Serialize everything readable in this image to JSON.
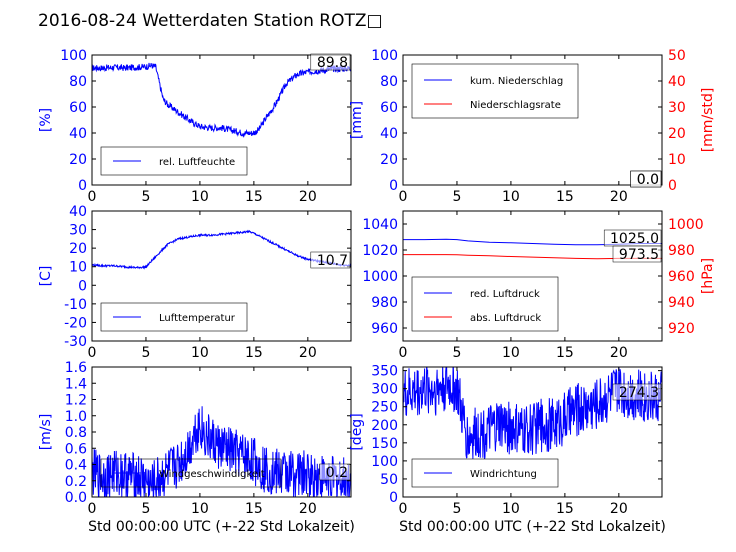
{
  "figure_title": "2016-08-24 Wetterdaten Station ROTZ□",
  "chart_data": [
    {
      "type": "line",
      "panel": "humidity",
      "xlabel": "",
      "ylabel": "[%]",
      "xlim": [
        0,
        24
      ],
      "ylim": [
        0,
        100
      ],
      "xticks": [
        0,
        5,
        10,
        15,
        20
      ],
      "yticks": [
        0,
        20,
        40,
        60,
        80,
        100
      ],
      "legend_position": "lower-left",
      "value_label": "89.8",
      "series": [
        {
          "name": "rel. Luftfeuchte",
          "color": "#0000ff",
          "noise": 2.5,
          "x": [
            0,
            1,
            2,
            3,
            4,
            5,
            5.5,
            5.9,
            6.2,
            6.6,
            7,
            8,
            9,
            10,
            11,
            12,
            13,
            14,
            15,
            15.5,
            16,
            17,
            18,
            19,
            20,
            21,
            22,
            23,
            24
          ],
          "y": [
            90,
            90,
            90.5,
            90,
            90.5,
            91,
            92,
            91,
            80,
            66,
            62,
            56,
            50,
            45,
            44,
            44,
            42,
            40,
            40,
            43,
            50,
            62,
            78,
            85,
            87,
            88,
            89,
            89.5,
            89.8
          ]
        }
      ]
    },
    {
      "type": "line",
      "panel": "precipitation",
      "xlabel": "",
      "ylabel": "[mm]",
      "ylabel_right": "[mm/std]",
      "xlim": [
        0,
        24
      ],
      "ylim": [
        0,
        100
      ],
      "ylim_right": [
        0,
        50
      ],
      "xticks": [
        0,
        5,
        10,
        15,
        20
      ],
      "yticks": [
        0,
        20,
        40,
        60,
        80,
        100
      ],
      "yticks_right": [
        0,
        10,
        20,
        30,
        40,
        50
      ],
      "legend_position": "top-left",
      "value_labels": [
        "0.0",
        "0.0"
      ],
      "series": [
        {
          "name": "kum. Niederschlag",
          "color": "#0000ff",
          "axis": "left",
          "x": [
            0,
            24
          ],
          "y": [
            0,
            0
          ]
        },
        {
          "name": "Niederschlagsrate",
          "color": "#ff0000",
          "axis": "right",
          "x": [
            0,
            24
          ],
          "y": [
            0,
            0
          ]
        }
      ]
    },
    {
      "type": "line",
      "panel": "temperature",
      "xlabel": "",
      "ylabel": "[C]",
      "xlim": [
        0,
        24
      ],
      "ylim": [
        -30,
        40
      ],
      "xticks": [
        0,
        5,
        10,
        15,
        20
      ],
      "yticks": [
        -30,
        -20,
        -10,
        0,
        10,
        20,
        30,
        40
      ],
      "legend_position": "lower-left",
      "value_label": "10.7",
      "series": [
        {
          "name": "Lufttemperatur",
          "color": "#0000ff",
          "noise": 0.5,
          "x": [
            0,
            1,
            2,
            3,
            4,
            5,
            5.5,
            6,
            7,
            8,
            9,
            10,
            11,
            12,
            13,
            14,
            14.5,
            15,
            16,
            17,
            18,
            19,
            20,
            21,
            22,
            23,
            24
          ],
          "y": [
            11,
            10.5,
            10.5,
            10,
            9.5,
            9.8,
            13,
            16,
            22,
            25,
            26,
            27,
            27,
            27.5,
            28,
            28.5,
            29,
            28,
            25,
            22,
            19,
            16,
            14,
            13,
            12,
            11,
            10.7
          ]
        }
      ]
    },
    {
      "type": "line",
      "panel": "pressure",
      "xlabel": "",
      "ylabel": "",
      "ylabel_right": "[hPa]",
      "xlim": [
        0,
        24
      ],
      "ylim": [
        950,
        1050
      ],
      "ylim_right": [
        910,
        1010
      ],
      "xticks": [
        0,
        5,
        10,
        15,
        20
      ],
      "yticks": [
        960,
        980,
        1000,
        1020,
        1040
      ],
      "yticks_right": [
        920,
        940,
        960,
        980,
        1000
      ],
      "legend_position": "lower-left",
      "value_labels": [
        "1025.0",
        "973.5"
      ],
      "series": [
        {
          "name": "red. Luftdruck",
          "color": "#0000ff",
          "axis": "left",
          "x": [
            0,
            2,
            4,
            5,
            6,
            8,
            10,
            12,
            14,
            16,
            18,
            20,
            22,
            24
          ],
          "y": [
            1028,
            1028,
            1028.3,
            1028,
            1027,
            1026,
            1025.5,
            1025,
            1024.5,
            1024,
            1024,
            1024.5,
            1025,
            1025
          ]
        },
        {
          "name": "abs. Luftdruck",
          "color": "#ff0000",
          "axis": "right",
          "x": [
            0,
            2,
            4,
            5,
            6,
            8,
            10,
            12,
            14,
            16,
            18,
            20,
            22,
            24
          ],
          "y": [
            976.5,
            976.5,
            976.5,
            976.3,
            976,
            975.5,
            975,
            974.5,
            974,
            973.5,
            973.3,
            973.5,
            973.5,
            973.5
          ]
        }
      ]
    },
    {
      "type": "line",
      "panel": "wind-speed",
      "xlabel": "Std 00:00:00 UTC (+-22 Std Lokalzeit)",
      "ylabel": "[m/s]",
      "xlim": [
        0,
        24
      ],
      "ylim": [
        0,
        1.6
      ],
      "xticks": [
        0,
        5,
        10,
        15,
        20
      ],
      "yticks": [
        0.0,
        0.2,
        0.4,
        0.6,
        0.8,
        1.0,
        1.2,
        1.4,
        1.6
      ],
      "legend_position": "lower-center",
      "value_label": "0.2",
      "series": [
        {
          "name": "Windgeschwindigkeit",
          "color": "#0000ff",
          "noise": 0.3,
          "x": [
            0,
            1,
            2,
            3,
            4,
            5,
            5.5,
            6,
            7,
            8,
            9,
            9.5,
            10,
            10.5,
            11,
            12,
            13,
            14,
            15,
            16,
            17,
            18,
            19,
            20,
            21,
            22,
            23,
            24
          ],
          "y": [
            0.3,
            0.25,
            0.3,
            0.28,
            0.25,
            0.2,
            0.12,
            0.2,
            0.3,
            0.4,
            0.6,
            0.8,
            0.9,
            0.75,
            0.7,
            0.6,
            0.55,
            0.5,
            0.45,
            0.35,
            0.3,
            0.3,
            0.28,
            0.27,
            0.25,
            0.22,
            0.2,
            0.2
          ]
        }
      ]
    },
    {
      "type": "line",
      "panel": "wind-direction",
      "xlabel": "Std 00:00:00 UTC (+-22 Std Lokalzeit)",
      "ylabel": "[deg]",
      "xlim": [
        0,
        24
      ],
      "ylim": [
        0,
        360
      ],
      "xticks": [
        0,
        5,
        10,
        15,
        20
      ],
      "yticks": [
        0,
        50,
        100,
        150,
        200,
        250,
        300,
        350
      ],
      "legend_position": "lower-left",
      "value_label": "274.3",
      "series": [
        {
          "name": "Windrichtung",
          "color": "#0000ff",
          "noise": 75,
          "x": [
            0,
            1,
            2,
            3,
            4,
            5,
            5.5,
            6,
            7,
            8,
            9,
            10,
            11,
            12,
            13,
            14,
            15,
            16,
            17,
            18,
            19,
            20,
            21,
            22,
            23,
            24
          ],
          "y": [
            280,
            290,
            300,
            300,
            310,
            300,
            220,
            160,
            180,
            180,
            200,
            190,
            180,
            190,
            200,
            200,
            220,
            240,
            250,
            260,
            280,
            300,
            290,
            280,
            280,
            275
          ]
        }
      ]
    }
  ]
}
